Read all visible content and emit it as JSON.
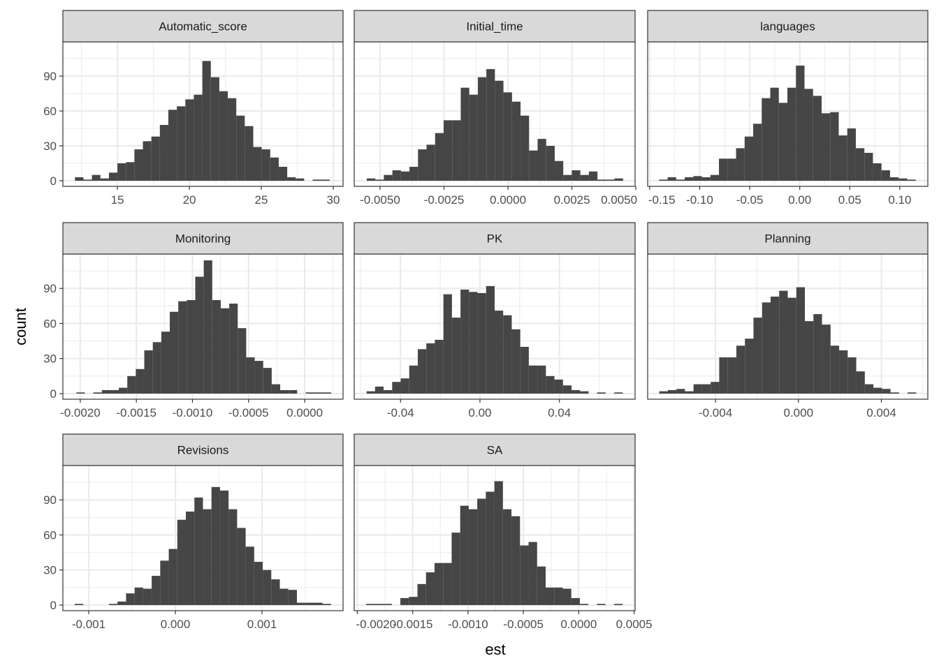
{
  "chart_data": {
    "type": "bar",
    "subtype": "faceted-histogram",
    "title": "",
    "xlabel": "est",
    "ylabel": "count",
    "ylim": [
      -4.8,
      119.4
    ],
    "y_ticks": [
      {
        "value": 0,
        "label": "0"
      },
      {
        "value": 30,
        "label": "30"
      },
      {
        "value": 60,
        "label": "60"
      },
      {
        "value": 90,
        "label": "90"
      }
    ],
    "grid": true,
    "colors": {
      "bar": "#464646",
      "strip": "#d9d9d9",
      "border": "#333333",
      "grid": "#ebebeb"
    },
    "panels": [
      {
        "strip": "Automatic_score",
        "xlim": [
          11.21,
          30.68
        ],
        "bin_start": 12.05,
        "bin_width": 0.59,
        "counts": [
          3,
          1,
          5,
          2,
          7,
          15,
          16,
          27,
          34,
          38,
          48,
          61,
          64,
          70,
          74,
          103,
          89,
          77,
          71,
          56,
          47,
          29,
          27,
          20,
          12,
          3,
          2,
          0,
          1,
          1
        ],
        "x_ticks": [
          {
            "value": 15,
            "label": "15"
          },
          {
            "value": 20,
            "label": "20"
          },
          {
            "value": 25,
            "label": "25"
          },
          {
            "value": 30,
            "label": "30"
          }
        ]
      },
      {
        "strip": "Initial_time",
        "xlim": [
          -0.00601,
          0.00497
        ],
        "bin_start": -0.00552,
        "bin_width": 0.000334,
        "counts": [
          2,
          1,
          5,
          9,
          8,
          12,
          27,
          31,
          41,
          52,
          52,
          80,
          74,
          89,
          96,
          86,
          76,
          68,
          56,
          26,
          36,
          30,
          17,
          5,
          9,
          5,
          8,
          1,
          1,
          2
        ],
        "x_ticks": [
          {
            "value": -0.005,
            "label": "-0.0050"
          },
          {
            "value": -0.0025,
            "label": "-0.0025"
          },
          {
            "value": 0,
            "label": "0.0000"
          },
          {
            "value": 0.0025,
            "label": "0.0025"
          },
          {
            "value": 0.005,
            "label": "0.0050"
          }
        ]
      },
      {
        "strip": "languages",
        "xlim": [
          -0.152,
          0.128
        ],
        "bin_start": -0.1406,
        "bin_width": 0.00855,
        "counts": [
          1,
          3,
          1,
          3,
          4,
          3,
          5,
          19,
          19,
          28,
          38,
          49,
          71,
          80,
          67,
          80,
          99,
          79,
          73,
          58,
          59,
          39,
          45,
          28,
          24,
          15,
          9,
          3,
          2,
          1
        ],
        "x_ticks": [
          {
            "value": -0.15,
            "label": "-0.15"
          },
          {
            "value": -0.1,
            "label": "-0.10"
          },
          {
            "value": -0.05,
            "label": "-0.05"
          },
          {
            "value": 0,
            "label": "0.00"
          },
          {
            "value": 0.05,
            "label": "0.05"
          },
          {
            "value": 0.1,
            "label": "0.10"
          }
        ]
      },
      {
        "strip": "Monitoring",
        "xlim": [
          -0.002155,
          0.000342
        ],
        "bin_start": -0.002035,
        "bin_width": 7.57e-05,
        "counts": [
          1,
          0,
          1,
          3,
          3,
          5,
          15,
          21,
          37,
          44,
          53,
          70,
          79,
          80,
          100,
          114,
          80,
          73,
          77,
          56,
          31,
          28,
          22,
          8,
          3,
          3,
          0,
          1,
          1,
          1
        ],
        "x_ticks": [
          {
            "value": -0.002,
            "label": "-0.0020"
          },
          {
            "value": -0.0015,
            "label": "-0.0015"
          },
          {
            "value": -0.001,
            "label": "-0.0010"
          },
          {
            "value": -0.0005,
            "label": "-0.0005"
          },
          {
            "value": 0,
            "label": "0.0000"
          }
        ]
      },
      {
        "strip": "PK",
        "xlim": [
          -0.0633,
          0.0781
        ],
        "bin_start": -0.0571,
        "bin_width": 0.0043,
        "counts": [
          2,
          6,
          3,
          10,
          13,
          24,
          38,
          43,
          46,
          85,
          65,
          89,
          87,
          86,
          92,
          71,
          67,
          55,
          40,
          24,
          24,
          15,
          12,
          7,
          3,
          2,
          0,
          1,
          0,
          1
        ],
        "x_ticks": [
          {
            "value": -0.04,
            "label": "-0.04"
          },
          {
            "value": 0,
            "label": "0.00"
          },
          {
            "value": 0.04,
            "label": "0.04"
          }
        ]
      },
      {
        "strip": "Planning",
        "xlim": [
          -0.00727,
          0.00624
        ],
        "bin_start": -0.00671,
        "bin_width": 0.000413,
        "counts": [
          2,
          3,
          4,
          2,
          8,
          8,
          10,
          31,
          31,
          41,
          47,
          65,
          78,
          83,
          88,
          82,
          91,
          62,
          68,
          59,
          41,
          37,
          31,
          19,
          8,
          5,
          4,
          1,
          0,
          1
        ],
        "x_ticks": [
          {
            "value": -0.004,
            "label": "-0.004"
          },
          {
            "value": 0,
            "label": "0.000"
          },
          {
            "value": 0.004,
            "label": "0.004"
          }
        ]
      },
      {
        "strip": "Revisions",
        "xlim": [
          -0.0012984,
          0.001935
        ],
        "bin_start": -0.001161,
        "bin_width": 9.86e-05,
        "counts": [
          1,
          0,
          0,
          0,
          1,
          3,
          10,
          15,
          14,
          25,
          38,
          48,
          73,
          80,
          92,
          82,
          101,
          98,
          82,
          66,
          50,
          37,
          30,
          22,
          14,
          13,
          2,
          2,
          2,
          1
        ],
        "x_ticks": [
          {
            "value": -0.001,
            "label": "-0.001"
          },
          {
            "value": 0,
            "label": "0.000"
          },
          {
            "value": 0.001,
            "label": "0.001"
          }
        ]
      },
      {
        "strip": "SA",
        "xlim": [
          -0.002028,
          0.000509
        ],
        "bin_start": -0.00192,
        "bin_width": 7.72e-05,
        "counts": [
          1,
          1,
          1,
          0,
          6,
          7,
          18,
          28,
          36,
          36,
          62,
          85,
          82,
          91,
          97,
          106,
          82,
          76,
          51,
          54,
          33,
          15,
          15,
          14,
          6,
          1,
          0,
          1,
          0,
          1
        ],
        "x_ticks": [
          {
            "value": -0.002,
            "label": "-0.0020"
          },
          {
            "value": -0.0015,
            "label": "-0.0015"
          },
          {
            "value": -0.001,
            "label": "-0.0010"
          },
          {
            "value": -0.0005,
            "label": "-0.0005"
          },
          {
            "value": 0,
            "label": "0.0000"
          },
          {
            "value": 0.0005,
            "label": "0.0005"
          }
        ]
      }
    ]
  }
}
